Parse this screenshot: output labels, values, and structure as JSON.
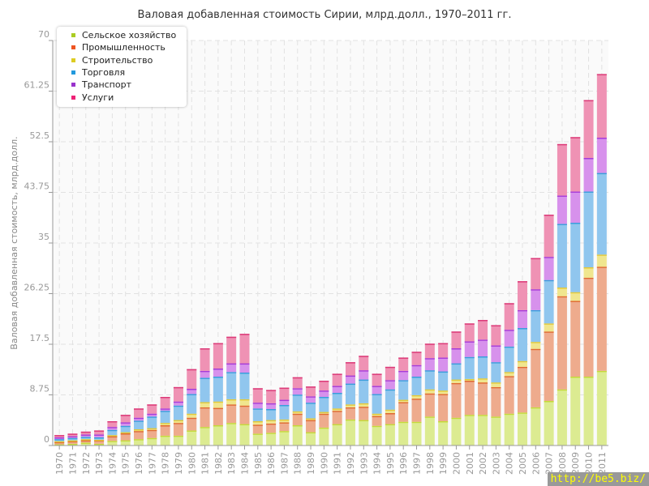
{
  "chart_data": {
    "type": "bar",
    "stacked": true,
    "title": "Валовая добавленная стоимость Сирии, млрд.долл., 1970–2011 гг.",
    "xlabel": "",
    "ylabel": "Валовая добавленная стоимость, млрд.долл.",
    "ylim": [
      0,
      70
    ],
    "yticks": [
      "0",
      "8.75",
      "17.5",
      "26.25",
      "35",
      "43.75",
      "52.5",
      "61.25",
      "70"
    ],
    "grid": true,
    "legend_position": "top-left",
    "categories": [
      "1970",
      "1971",
      "1972",
      "1973",
      "1974",
      "1975",
      "1976",
      "1977",
      "1978",
      "1979",
      "1980",
      "1981",
      "1982",
      "1983",
      "1984",
      "1985",
      "1986",
      "1987",
      "1988",
      "1989",
      "1990",
      "1991",
      "1992",
      "1993",
      "1994",
      "1995",
      "1996",
      "1997",
      "1998",
      "1999",
      "2000",
      "2001",
      "2002",
      "2003",
      "2004",
      "2005",
      "2006",
      "2007",
      "2008",
      "2009",
      "2010",
      "2011"
    ],
    "series": [
      {
        "name": "Сельское хозяйство",
        "color": "#aacc22",
        "fill": "#dceb91",
        "stroke": "#c5da3a",
        "values": [
          0.2,
          0.3,
          0.5,
          0.3,
          0.8,
          0.9,
          1.1,
          1.3,
          1.7,
          1.7,
          2.6,
          3.2,
          3.5,
          3.9,
          3.7,
          2.05,
          2.2,
          2.5,
          3.5,
          2.3,
          3.1,
          3.7,
          4.5,
          4.4,
          3.4,
          3.7,
          4.1,
          4.1,
          5.0,
          4.2,
          4.8,
          5.3,
          5.3,
          5.0,
          5.5,
          5.7,
          6.6,
          7.7,
          9.7,
          11.9,
          11.9,
          12.9
        ]
      },
      {
        "name": "Промышленность",
        "color": "#ee5522",
        "fill": "#eeab8d",
        "stroke": "#e06a30",
        "values": [
          0.4,
          0.45,
          0.4,
          0.6,
          0.8,
          1.2,
          1.4,
          1.4,
          1.8,
          2.2,
          2.2,
          3.4,
          3.0,
          3.2,
          3.2,
          1.55,
          1.6,
          1.5,
          2.0,
          2.1,
          2.4,
          2.3,
          2.1,
          2.3,
          1.7,
          1.9,
          3.4,
          4.0,
          4.0,
          4.7,
          6.0,
          5.9,
          5.6,
          5.1,
          6.5,
          7.9,
          10.1,
          12.0,
          16.1,
          13.1,
          17.1,
          18.0
        ]
      },
      {
        "name": "Строительство",
        "color": "#ddcc22",
        "fill": "#f0e68e",
        "stroke": "#e2c838",
        "values": [
          0.15,
          0.15,
          0.2,
          0.1,
          0.2,
          0.2,
          0.3,
          0.3,
          0.4,
          0.5,
          0.7,
          0.9,
          1.1,
          0.9,
          1.1,
          0.6,
          0.6,
          0.5,
          0.4,
          0.3,
          0.3,
          0.4,
          0.5,
          0.6,
          0.4,
          0.6,
          0.4,
          0.6,
          0.7,
          0.6,
          0.6,
          0.3,
          0.7,
          0.8,
          0.7,
          1.0,
          1.2,
          1.4,
          1.5,
          1.5,
          1.8,
          2.1
        ]
      },
      {
        "name": "Торговля",
        "color": "#2299dd",
        "fill": "#90c6ee",
        "stroke": "#3a9ddc",
        "values": [
          0.35,
          0.4,
          0.4,
          0.4,
          0.9,
          1.1,
          1.5,
          2.0,
          2.1,
          2.5,
          3.4,
          4.2,
          4.3,
          4.7,
          4.6,
          2.2,
          1.9,
          2.5,
          2.9,
          2.7,
          2.6,
          2.7,
          3.6,
          4.1,
          3.4,
          3.5,
          3.4,
          3.2,
          3.3,
          3.3,
          2.8,
          3.8,
          3.8,
          3.5,
          4.4,
          5.7,
          5.5,
          7.5,
          11.0,
          12.0,
          13.1,
          14.1
        ]
      },
      {
        "name": "Транспорт",
        "color": "#9933cc",
        "fill": "#d791ec",
        "stroke": "#a63bd8",
        "values": [
          0.3,
          0.3,
          0.4,
          0.5,
          0.5,
          0.6,
          0.5,
          0.5,
          0.4,
          0.7,
          0.9,
          1.2,
          1.4,
          1.5,
          1.6,
          1.0,
          1.0,
          0.9,
          1.1,
          1.1,
          1.1,
          1.2,
          1.4,
          1.6,
          1.4,
          1.6,
          1.6,
          2.0,
          2.1,
          2.4,
          2.6,
          2.7,
          2.9,
          2.9,
          2.9,
          3.1,
          3.6,
          4.0,
          4.9,
          5.4,
          5.8,
          6.1
        ]
      },
      {
        "name": "Услуги",
        "color": "#ee2277",
        "fill": "#ef92b4",
        "stroke": "#dc3a78",
        "values": [
          0.4,
          0.45,
          0.5,
          0.7,
          1.0,
          1.3,
          1.6,
          1.6,
          2.0,
          2.5,
          3.4,
          3.9,
          4.4,
          4.6,
          5.1,
          2.5,
          2.3,
          2.1,
          1.9,
          1.7,
          1.7,
          2.1,
          2.3,
          2.5,
          2.1,
          2.3,
          2.3,
          2.3,
          2.5,
          2.5,
          2.9,
          3.1,
          3.4,
          3.5,
          4.6,
          5.0,
          5.4,
          7.3,
          8.9,
          9.4,
          10.0,
          11.0
        ]
      }
    ]
  },
  "watermark": "http://be5.biz/"
}
